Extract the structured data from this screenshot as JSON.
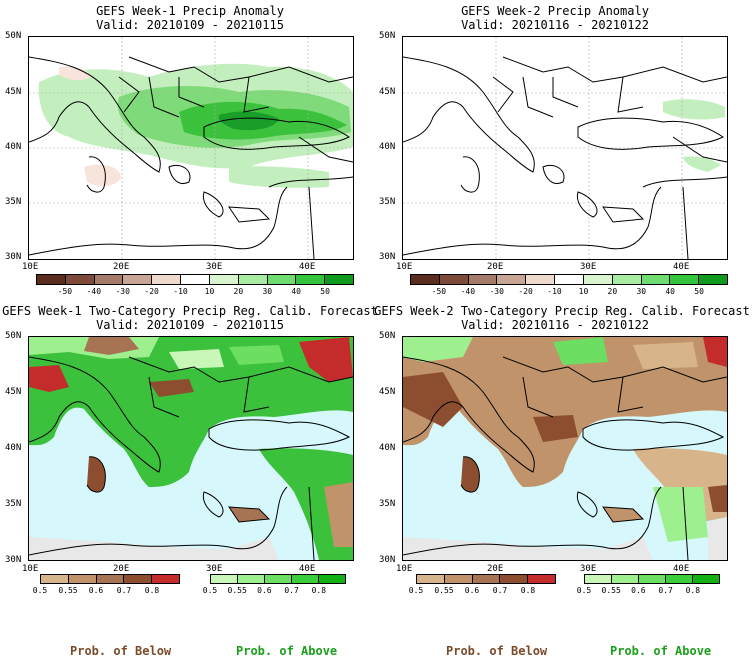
{
  "panels": {
    "w1_anom": {
      "title": "GEFS Week-1 Precip Anomaly",
      "valid": "Valid: 20210109 - 20210115"
    },
    "w2_anom": {
      "title": "GEFS Week-2 Precip Anomaly",
      "valid": "Valid: 20210116 - 20210122"
    },
    "w1_prob": {
      "title": "GEFS Week-1 Two-Category Precip Reg. Calib. Forecast",
      "valid": "Valid: 20210109 - 20210115"
    },
    "w2_prob": {
      "title": "GEFS Week-2 Two-Category Precip Reg. Calib. Forecast",
      "valid": "Valid: 20210116 - 20210122"
    }
  },
  "axes": {
    "lat_labels": [
      "50N",
      "45N",
      "40N",
      "35N",
      "30N"
    ],
    "lon_labels": [
      "10E",
      "20E",
      "30E",
      "40E"
    ]
  },
  "anomaly_colorbar": {
    "labels": [
      "-50",
      "-40",
      "-30",
      "-20",
      "-10",
      "10",
      "20",
      "30",
      "40",
      "50"
    ],
    "colors": [
      "#5a2d1e",
      "#7e4b3a",
      "#a57a68",
      "#c9a595",
      "#efd9cc",
      "#ffffff",
      "#d8f5d0",
      "#a7eca0",
      "#6edc6e",
      "#34c43c",
      "#0f9a1e"
    ]
  },
  "below_colorbar": {
    "labels": [
      "0.5",
      "0.55",
      "0.6",
      "0.7",
      "0.8"
    ],
    "colors": [
      "#d8b48a",
      "#c0936a",
      "#a67452",
      "#8c4e2e",
      "#c42c2c"
    ]
  },
  "above_colorbar": {
    "labels": [
      "0.5",
      "0.55",
      "0.6",
      "0.7",
      "0.8"
    ],
    "colors": [
      "#c8f7b8",
      "#9ef08e",
      "#6cdf62",
      "#3ccd3c",
      "#12b012"
    ]
  },
  "legend": {
    "below": "Prob. of Below",
    "above": "Prob. of Above"
  },
  "colors": {
    "sea": "#d6f7fb",
    "land_grey": "#e8e8e8"
  }
}
